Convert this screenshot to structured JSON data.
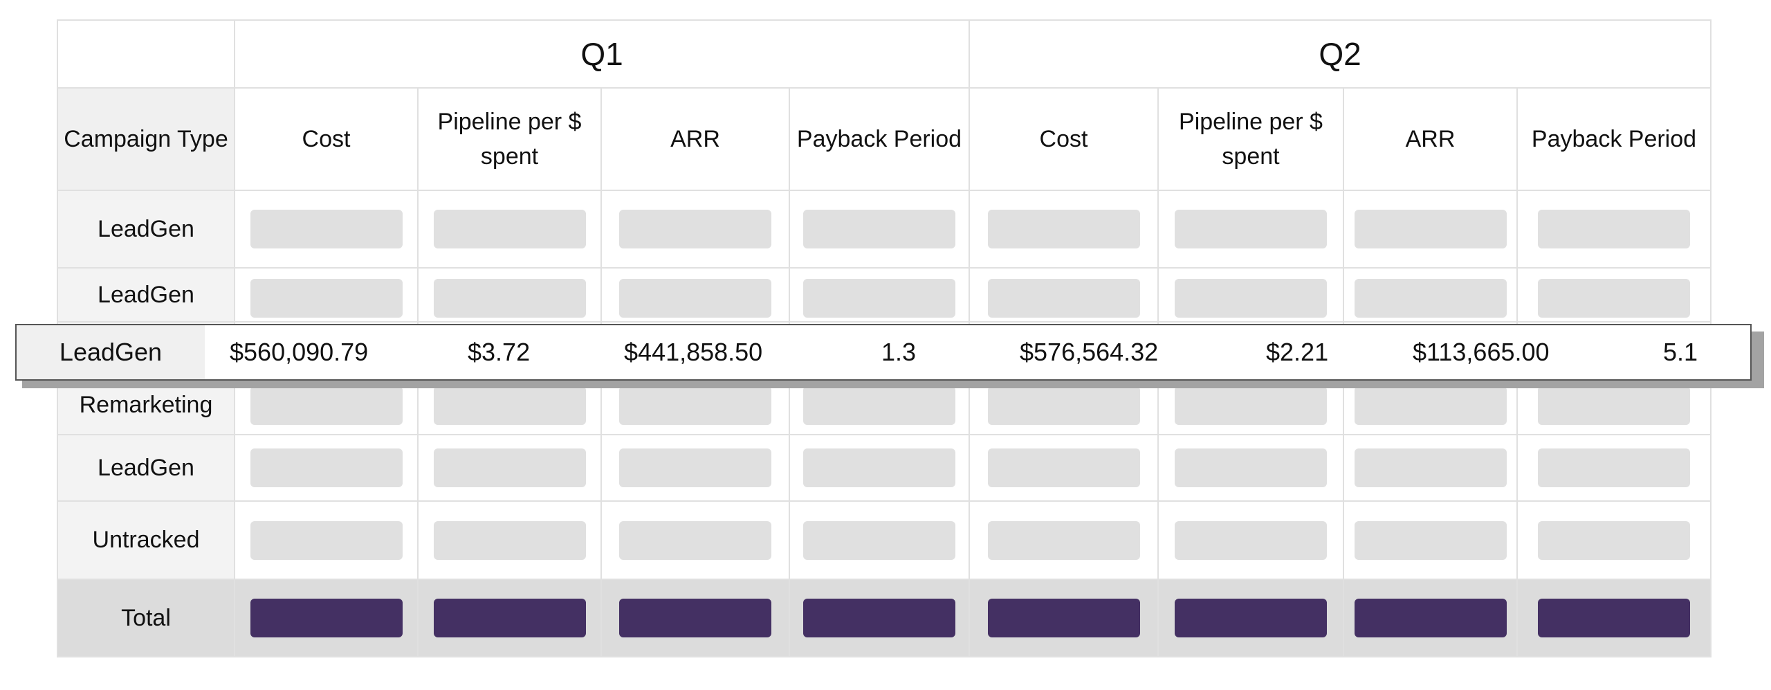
{
  "quarters": [
    "Q1",
    "Q2"
  ],
  "header": {
    "campaign_type": "Campaign Type",
    "q1_cols": [
      "Cost",
      "Pipeline per $ spent",
      "ARR",
      "Payback Period"
    ],
    "q2_cols": [
      "Cost",
      "Pipeline per $ spent",
      "ARR",
      "Payback Period"
    ]
  },
  "rows": [
    "LeadGen",
    "LeadGen",
    "Remarketing",
    "LeadGen",
    "Untracked"
  ],
  "total_label": "Total",
  "highlight": {
    "label": "LeadGen",
    "values": [
      "$560,090.79",
      "$3.72",
      "$441,858.50",
      "1.3",
      "$576,564.32",
      "$2.21",
      "$113,665.00",
      "5.1"
    ]
  },
  "colors": {
    "placeholder": "#e0e0e0",
    "total_bar": "#443063",
    "grid_line": "#e0e0e0",
    "label_bg": "#f3f3f3"
  }
}
